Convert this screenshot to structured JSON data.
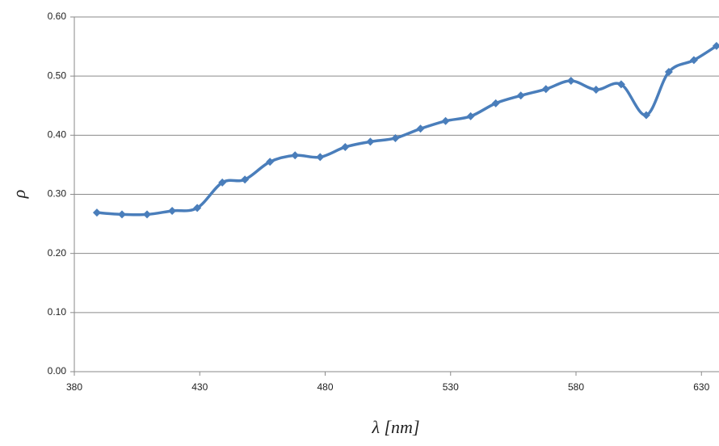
{
  "chart_data": {
    "type": "line",
    "x_label": "λ [nm]",
    "y_label": "ρ",
    "x": [
      389,
      399,
      409,
      419,
      429,
      439,
      448,
      458,
      468,
      478,
      488,
      498,
      508,
      518,
      528,
      538,
      548,
      558,
      568,
      578,
      588,
      598,
      608,
      617,
      627,
      636
    ],
    "values": [
      0.269,
      0.266,
      0.266,
      0.272,
      0.277,
      0.32,
      0.325,
      0.355,
      0.366,
      0.363,
      0.38,
      0.389,
      0.395,
      0.411,
      0.424,
      0.432,
      0.454,
      0.467,
      0.478,
      0.492,
      0.477,
      0.486,
      0.434,
      0.507,
      0.527,
      0.551
    ],
    "color": "#4a7ebb",
    "xlim": [
      380,
      637
    ],
    "xticks": [
      380,
      430,
      480,
      530,
      580,
      630
    ],
    "ylim": [
      0,
      0.6
    ],
    "yticks": [
      {
        "value": 0,
        "label": "0.00"
      },
      {
        "value": 0.1,
        "label": "0.10"
      },
      {
        "value": 0.2,
        "label": "0.20"
      },
      {
        "value": 0.3,
        "label": "0.30"
      },
      {
        "value": 0.4,
        "label": "0.40"
      },
      {
        "value": 0.5,
        "label": "0.50"
      },
      {
        "value": 0.6,
        "label": "0.60"
      }
    ],
    "grid": true,
    "smooth": true
  }
}
